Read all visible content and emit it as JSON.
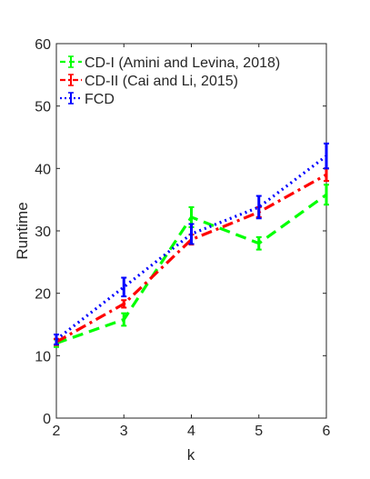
{
  "chart_data": {
    "type": "line",
    "title": "",
    "xlabel": "k",
    "ylabel": "Runtime",
    "xlim": [
      2,
      6
    ],
    "ylim": [
      0,
      60
    ],
    "xticks": [
      2,
      3,
      4,
      5,
      6
    ],
    "yticks": [
      0,
      10,
      20,
      30,
      40,
      50,
      60
    ],
    "grid": false,
    "legend_position": "top-left",
    "series": [
      {
        "name": "CD-I (Amini and Levina, 2018)",
        "color": "#00ff00",
        "style": "dashed",
        "x": [
          2,
          3,
          4,
          5,
          6
        ],
        "y": [
          12.0,
          15.8,
          32.2,
          28.0,
          35.8
        ],
        "err": [
          0.6,
          1.0,
          1.6,
          1.0,
          1.6
        ]
      },
      {
        "name": "CD-II (Cai and Li, 2015)",
        "color": "#ff0000",
        "style": "dashdot",
        "x": [
          2,
          3,
          4,
          5,
          6
        ],
        "y": [
          12.2,
          18.3,
          28.6,
          33.0,
          39.0
        ],
        "err": [
          0.5,
          0.6,
          0.8,
          0.8,
          1.0
        ]
      },
      {
        "name": "FCD",
        "color": "#0000ff",
        "style": "dotted",
        "x": [
          2,
          3,
          4,
          5,
          6
        ],
        "y": [
          12.6,
          21.0,
          29.5,
          33.8,
          42.0
        ],
        "err": [
          0.8,
          1.5,
          1.6,
          1.8,
          2.0
        ]
      }
    ]
  }
}
